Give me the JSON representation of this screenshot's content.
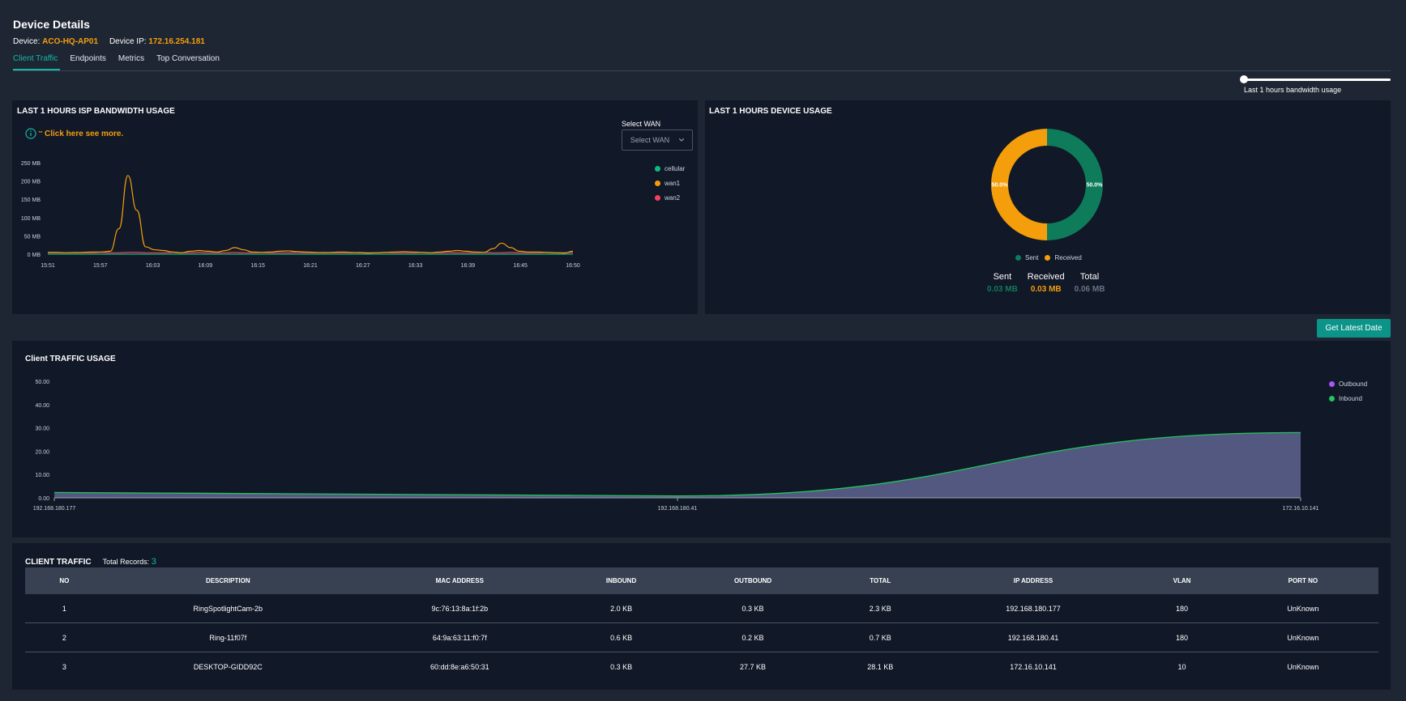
{
  "header": {
    "title": "Device Details",
    "device_label": "Device:",
    "device_value": "ACO-HQ-AP01",
    "ip_label": "Device IP:",
    "ip_value": "172.16.254.181"
  },
  "tabs": [
    "Client Traffic",
    "Endpoints",
    "Metrics",
    "Top Conversation"
  ],
  "slider": {
    "label": "Last 1 hours bandwidth usage"
  },
  "isp_panel": {
    "title": "LAST 1 HOURS ISP BANDWIDTH USAGE",
    "info_prefix": "™",
    "info_text": "Click here see more.",
    "select_label": "Select WAN",
    "select_value": "Select WAN"
  },
  "device_panel": {
    "title": "LAST 1 HOURS DEVICE USAGE",
    "sent_label": "Sent",
    "sent_value": "0.03 MB",
    "received_label": "Received",
    "received_value": "0.03 MB",
    "total_label": "Total",
    "total_value": "0.06 MB",
    "legend_sent": "Sent",
    "legend_received": "Received"
  },
  "get_latest_button": "Get Latest Date",
  "client_traffic_chart_title": "Client TRAFFIC USAGE",
  "colors": {
    "accent": "#14b8a6",
    "orange": "#f59e0b",
    "green": "#0e7c5a",
    "cellular": "#10b981",
    "wan2": "#f43f5e",
    "outbound": "#a855f7",
    "inbound": "#22c55e"
  },
  "chart_data": [
    {
      "type": "line",
      "title": "LAST 1 HOURS ISP BANDWIDTH USAGE",
      "y_ticks": [
        "250 MB",
        "200 MB",
        "150 MB",
        "100 MB",
        "50 MB",
        "0 MB"
      ],
      "ylim": [
        0,
        250
      ],
      "x_ticks": [
        "15:51",
        "15:57",
        "16:03",
        "16:09",
        "16:15",
        "16:21",
        "16:27",
        "16:33",
        "16:39",
        "16:45",
        "16:50"
      ],
      "series": [
        {
          "name": "cellular",
          "values": [
            0,
            0,
            0,
            0,
            0,
            0,
            0,
            0,
            0,
            0,
            0,
            0,
            0,
            0,
            0,
            0,
            0,
            0,
            0,
            0,
            0,
            0,
            0,
            0,
            0,
            0,
            0,
            0,
            0,
            0,
            0,
            0,
            0,
            0,
            0,
            0,
            0,
            0,
            0,
            0,
            0,
            0,
            0,
            0,
            0,
            0,
            0,
            0,
            0,
            0,
            0,
            0,
            0,
            0,
            0,
            0,
            0,
            0,
            0,
            0
          ]
        },
        {
          "name": "wan1",
          "values": [
            5,
            5,
            4,
            4,
            5,
            6,
            6,
            8,
            70,
            215,
            120,
            20,
            12,
            10,
            6,
            4,
            8,
            10,
            8,
            6,
            10,
            18,
            12,
            6,
            5,
            6,
            8,
            9,
            7,
            6,
            5,
            4,
            5,
            6,
            5,
            4,
            3,
            4,
            5,
            6,
            7,
            6,
            5,
            4,
            6,
            8,
            10,
            8,
            6,
            5,
            15,
            30,
            18,
            8,
            6,
            6,
            5,
            4,
            3,
            8
          ]
        },
        {
          "name": "wan2",
          "values": [
            4,
            4,
            4,
            5,
            4,
            4,
            5,
            4,
            4,
            5,
            5,
            4,
            4,
            4,
            5,
            4,
            4,
            5,
            4,
            4,
            4,
            5,
            4,
            4,
            5,
            4,
            4,
            4,
            5,
            4,
            4,
            5,
            4,
            4,
            4,
            5,
            4,
            4,
            5,
            4,
            4,
            4,
            5,
            4,
            4,
            5,
            4,
            4,
            4,
            5,
            4,
            4,
            5,
            4,
            4,
            4,
            5,
            4,
            4,
            5
          ]
        }
      ]
    },
    {
      "type": "pie",
      "title": "LAST 1 HOURS DEVICE USAGE",
      "categories": [
        "Sent",
        "Received"
      ],
      "values": [
        50.0,
        50.0
      ],
      "labels": [
        "50.0%",
        "50.0%"
      ]
    },
    {
      "type": "area",
      "title": "Client TRAFFIC USAGE",
      "y_ticks": [
        "50.00",
        "40.00",
        "30.00",
        "20.00",
        "10.00",
        "0.00"
      ],
      "ylim": [
        0,
        50
      ],
      "categories": [
        "192.168.180.177",
        "192.168.180.41",
        "172.16.10.141"
      ],
      "series": [
        {
          "name": "Outbound",
          "values": [
            0.3,
            0.2,
            27.7
          ]
        },
        {
          "name": "Inbound",
          "values": [
            2.0,
            0.6,
            0.3
          ]
        }
      ]
    }
  ],
  "table": {
    "title": "CLIENT TRAFFIC",
    "records_label": "Total Records:",
    "records_value": "3",
    "headers": [
      "NO",
      "DESCRIPTION",
      "MAC ADDRESS",
      "INBOUND",
      "OUTBOUND",
      "TOTAL",
      "IP ADDRESS",
      "VLAN",
      "PORT NO"
    ],
    "rows": [
      [
        "1",
        "RingSpotlightCam-2b",
        "9c:76:13:8a:1f:2b",
        "2.0 KB",
        "0.3 KB",
        "2.3 KB",
        "192.168.180.177",
        "180",
        "UnKnown"
      ],
      [
        "2",
        "Ring-11f07f",
        "64:9a:63:11:f0:7f",
        "0.6 KB",
        "0.2 KB",
        "0.7 KB",
        "192.168.180.41",
        "180",
        "UnKnown"
      ],
      [
        "3",
        "DESKTOP-GIDD92C",
        "60:dd:8e:a6:50:31",
        "0.3 KB",
        "27.7 KB",
        "28.1 KB",
        "172.16.10.141",
        "10",
        "UnKnown"
      ]
    ]
  }
}
